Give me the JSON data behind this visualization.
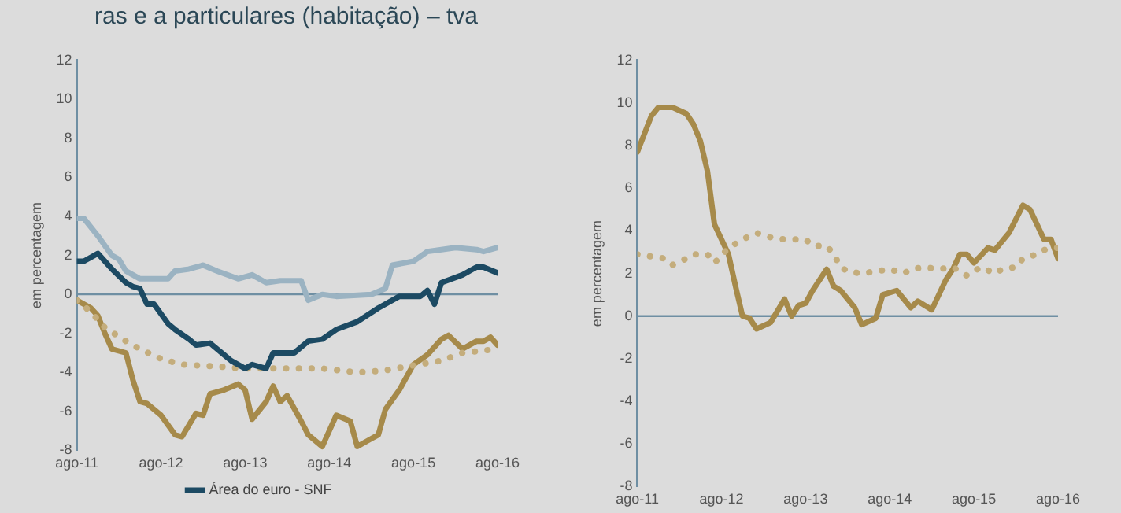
{
  "chart_data": [
    {
      "type": "line",
      "title": "ras e a particulares (habitação) – tva",
      "ylabel": "em percentagem",
      "xlim": [
        "2011-08",
        "2016-08"
      ],
      "xticks": [
        {
          "value": "2011-08",
          "label": "ago-11"
        },
        {
          "value": "2012-08",
          "label": "ago-12"
        },
        {
          "value": "2013-08",
          "label": "ago-13"
        },
        {
          "value": "2014-08",
          "label": "ago-14"
        },
        {
          "value": "2015-08",
          "label": "ago-15"
        },
        {
          "value": "2016-08",
          "label": "ago-16"
        }
      ],
      "ylim": [
        -8,
        12
      ],
      "yticks": [
        -8,
        -6,
        -4,
        -2,
        0,
        2,
        4,
        6,
        8,
        10,
        12
      ],
      "grid": false,
      "legend": "bottom",
      "marker": "none",
      "ref_lines": [
        {
          "axis": "y",
          "value": 0,
          "color": "#6f8fa3"
        }
      ],
      "series": [
        {
          "color": "#9bb3c2",
          "line_style": "solid",
          "x": [
            "2011-08",
            "2011-09",
            "2011-11",
            "2012-01",
            "2012-02",
            "2012-03",
            "2012-04",
            "2012-05",
            "2012-07",
            "2012-09",
            "2012-10",
            "2012-12",
            "2013-02",
            "2013-04",
            "2013-07",
            "2013-09",
            "2013-11",
            "2014-01",
            "2014-04",
            "2014-05",
            "2014-07",
            "2014-09",
            "2015-02",
            "2015-04",
            "2015-05",
            "2015-08",
            "2015-10",
            "2015-12",
            "2016-02",
            "2016-05",
            "2016-06",
            "2016-08"
          ],
          "values": [
            3.9,
            3.9,
            3.0,
            2.0,
            1.8,
            1.2,
            1.0,
            0.8,
            0.8,
            0.8,
            1.2,
            1.3,
            1.5,
            1.2,
            0.8,
            1.0,
            0.6,
            0.7,
            0.7,
            -0.3,
            0.0,
            -0.1,
            0.0,
            0.3,
            1.5,
            1.7,
            2.2,
            2.3,
            2.4,
            2.3,
            2.2,
            2.4
          ]
        },
        {
          "name": "Área do euro - SNF",
          "color": "#1c4a63",
          "line_style": "solid",
          "x": [
            "2011-08",
            "2011-09",
            "2011-11",
            "2012-01",
            "2012-03",
            "2012-04",
            "2012-05",
            "2012-06",
            "2012-07",
            "2012-09",
            "2012-10",
            "2012-12",
            "2013-01",
            "2013-03",
            "2013-05",
            "2013-06",
            "2013-08",
            "2013-09",
            "2013-11",
            "2013-12",
            "2014-03",
            "2014-05",
            "2014-07",
            "2014-09",
            "2014-12",
            "2015-03",
            "2015-06",
            "2015-09",
            "2015-10",
            "2015-11",
            "2015-12",
            "2016-03",
            "2016-05",
            "2016-06",
            "2016-08"
          ],
          "values": [
            1.7,
            1.7,
            2.1,
            1.3,
            0.6,
            0.4,
            0.3,
            -0.5,
            -0.5,
            -1.5,
            -1.8,
            -2.3,
            -2.6,
            -2.5,
            -3.1,
            -3.4,
            -3.8,
            -3.6,
            -3.8,
            -3.0,
            -3.0,
            -2.4,
            -2.3,
            -1.8,
            -1.4,
            -0.7,
            -0.1,
            -0.1,
            0.2,
            -0.5,
            0.6,
            1.0,
            1.4,
            1.4,
            1.1
          ]
        },
        {
          "color": "#c4ad7c",
          "line_style": "dotted",
          "x": [
            "2011-08",
            "2011-10",
            "2011-12",
            "2012-03",
            "2012-05",
            "2012-08",
            "2012-11",
            "2013-04",
            "2013-08",
            "2014-01",
            "2014-07",
            "2014-12",
            "2015-04",
            "2015-07",
            "2015-12",
            "2016-03",
            "2016-08"
          ],
          "values": [
            -0.3,
            -0.9,
            -1.7,
            -2.4,
            -2.8,
            -3.3,
            -3.6,
            -3.7,
            -3.8,
            -3.8,
            -3.8,
            -4.0,
            -3.9,
            -3.7,
            -3.4,
            -3.0,
            -2.8
          ]
        },
        {
          "color": "#a68a4a",
          "line_style": "solid",
          "x": [
            "2011-08",
            "2011-10",
            "2011-11",
            "2011-12",
            "2012-01",
            "2012-03",
            "2012-04",
            "2012-05",
            "2012-06",
            "2012-08",
            "2012-10",
            "2012-11",
            "2013-01",
            "2013-02",
            "2013-03",
            "2013-05",
            "2013-07",
            "2013-08",
            "2013-09",
            "2013-11",
            "2013-12",
            "2014-01",
            "2014-02",
            "2014-04",
            "2014-05",
            "2014-07",
            "2014-08",
            "2014-09",
            "2014-11",
            "2014-12",
            "2015-02",
            "2015-03",
            "2015-04",
            "2015-06",
            "2015-08",
            "2015-10",
            "2015-12",
            "2016-01",
            "2016-03",
            "2016-05",
            "2016-06",
            "2016-07",
            "2016-08"
          ],
          "values": [
            -0.3,
            -0.7,
            -1.1,
            -2.0,
            -2.8,
            -3.0,
            -4.4,
            -5.5,
            -5.6,
            -6.2,
            -7.2,
            -7.3,
            -6.1,
            -6.2,
            -5.1,
            -4.9,
            -4.6,
            -4.9,
            -6.4,
            -5.5,
            -4.7,
            -5.5,
            -5.2,
            -6.5,
            -7.2,
            -7.8,
            -7.0,
            -6.2,
            -6.5,
            -7.8,
            -7.4,
            -7.2,
            -5.9,
            -4.9,
            -3.6,
            -3.1,
            -2.3,
            -2.1,
            -2.8,
            -2.4,
            -2.4,
            -2.2,
            -2.6
          ]
        }
      ]
    },
    {
      "type": "line",
      "ylabel": "em percentagem",
      "xlim": [
        "2011-08",
        "2016-08"
      ],
      "xticks": [
        {
          "value": "2011-08",
          "label": "ago-11"
        },
        {
          "value": "2012-08",
          "label": "ago-12"
        },
        {
          "value": "2013-08",
          "label": "ago-13"
        },
        {
          "value": "2014-08",
          "label": "ago-14"
        },
        {
          "value": "2015-08",
          "label": "ago-15"
        },
        {
          "value": "2016-08",
          "label": "ago-16"
        }
      ],
      "ylim": [
        -8,
        12
      ],
      "yticks": [
        -8,
        -6,
        -4,
        -2,
        0,
        2,
        4,
        6,
        8,
        10,
        12
      ],
      "grid": false,
      "marker": "none",
      "ref_lines": [
        {
          "axis": "y",
          "value": 0,
          "color": "#6f8fa3"
        }
      ],
      "series": [
        {
          "color": "#c4ad7c",
          "line_style": "dotted",
          "x": [
            "2011-08",
            "2011-10",
            "2011-12",
            "2012-01",
            "2012-03",
            "2012-04",
            "2012-06",
            "2012-07",
            "2012-09",
            "2012-11",
            "2013-01",
            "2013-03",
            "2013-05",
            "2013-08",
            "2013-09",
            "2013-11",
            "2013-12",
            "2014-01",
            "2014-02",
            "2014-04",
            "2014-06",
            "2014-08",
            "2014-10",
            "2014-11",
            "2015-01",
            "2015-03",
            "2015-05",
            "2015-07",
            "2015-09",
            "2015-11",
            "2015-12",
            "2016-02",
            "2016-03",
            "2016-05",
            "2016-06",
            "2016-07",
            "2016-08"
          ],
          "values": [
            2.9,
            2.8,
            2.7,
            2.4,
            2.7,
            2.9,
            2.9,
            2.5,
            3.2,
            3.6,
            3.9,
            3.7,
            3.6,
            3.6,
            3.3,
            3.3,
            2.9,
            2.3,
            2.1,
            2.0,
            2.1,
            2.2,
            2.0,
            2.2,
            2.3,
            2.2,
            2.3,
            1.9,
            2.3,
            2.0,
            2.2,
            2.3,
            2.7,
            2.9,
            3.1,
            3.2,
            3.2
          ]
        },
        {
          "color": "#a68a4a",
          "line_style": "solid",
          "x": [
            "2011-08",
            "2011-10",
            "2011-11",
            "2011-12",
            "2012-01",
            "2012-03",
            "2012-04",
            "2012-05",
            "2012-06",
            "2012-07",
            "2012-09",
            "2012-10",
            "2012-11",
            "2012-12",
            "2013-01",
            "2013-03",
            "2013-05",
            "2013-06",
            "2013-07",
            "2013-08",
            "2013-09",
            "2013-11",
            "2013-12",
            "2014-01",
            "2014-03",
            "2014-04",
            "2014-06",
            "2014-07",
            "2014-09",
            "2014-11",
            "2014-12",
            "2015-02",
            "2015-04",
            "2015-05",
            "2015-06",
            "2015-07",
            "2015-08",
            "2015-10",
            "2015-11",
            "2016-01",
            "2016-03",
            "2016-04",
            "2016-06",
            "2016-07",
            "2016-08"
          ],
          "values": [
            7.7,
            9.4,
            9.8,
            9.8,
            9.8,
            9.5,
            9.0,
            8.2,
            6.8,
            4.3,
            2.9,
            1.4,
            0.0,
            -0.1,
            -0.6,
            -0.3,
            0.8,
            0.0,
            0.5,
            0.6,
            1.2,
            2.2,
            1.4,
            1.2,
            0.4,
            -0.4,
            -0.1,
            1.0,
            1.2,
            0.4,
            0.7,
            0.3,
            1.7,
            2.2,
            2.9,
            2.9,
            2.5,
            3.2,
            3.1,
            3.9,
            5.2,
            5.0,
            3.6,
            3.6,
            2.7
          ]
        }
      ]
    }
  ]
}
